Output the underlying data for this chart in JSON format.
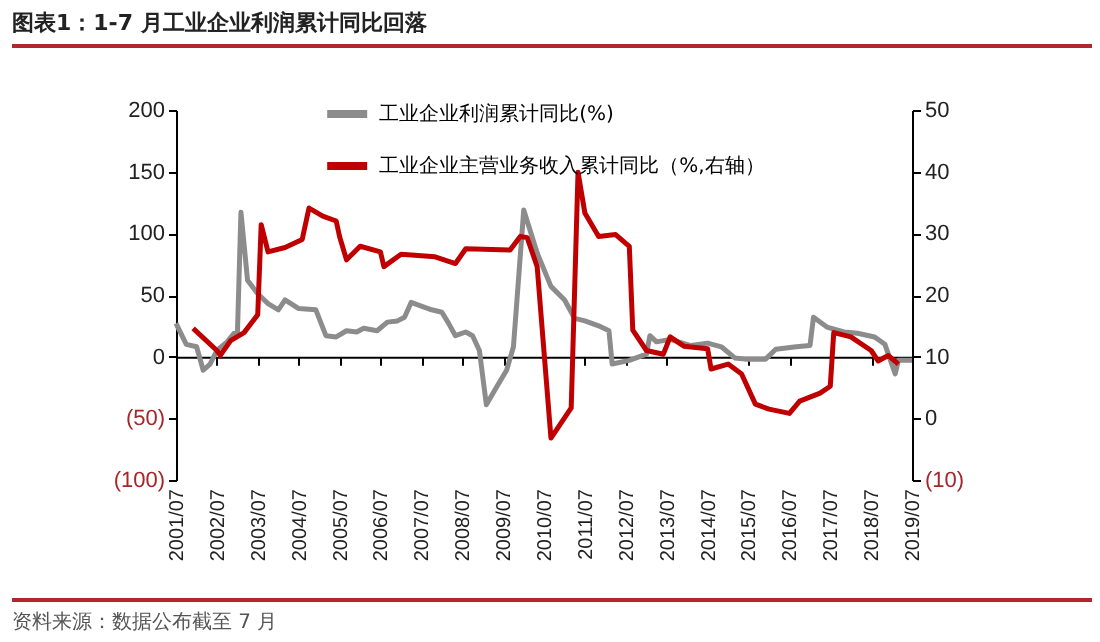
{
  "chart_data": {
    "type": "line",
    "title": "图表1：1-7 月工业企业利润累计同比回落",
    "annotations": [
      "资料来源：数据公布截至 7 月"
    ],
    "xlim": [
      "2001-07",
      "2019-07"
    ],
    "xticks": [
      {
        "value": "2001-07",
        "label": "2001/07"
      },
      {
        "value": "2002-07",
        "label": "2002/07"
      },
      {
        "value": "2003-07",
        "label": "2003/07"
      },
      {
        "value": "2004-07",
        "label": "2004/07"
      },
      {
        "value": "2005-07",
        "label": "2005/07"
      },
      {
        "value": "2006-07",
        "label": "2006/07"
      },
      {
        "value": "2007-07",
        "label": "2007/07"
      },
      {
        "value": "2008-07",
        "label": "2008/07"
      },
      {
        "value": "2009-07",
        "label": "2009/07"
      },
      {
        "value": "2010-07",
        "label": "2010/07"
      },
      {
        "value": "2011-07",
        "label": "2011/07"
      },
      {
        "value": "2012-07",
        "label": "2012/07"
      },
      {
        "value": "2013-07",
        "label": "2013/07"
      },
      {
        "value": "2014-07",
        "label": "2014/07"
      },
      {
        "value": "2015-07",
        "label": "2015/07"
      },
      {
        "value": "2016-07",
        "label": "2016/07"
      },
      {
        "value": "2017-07",
        "label": "2017/07"
      },
      {
        "value": "2018-07",
        "label": "2018/07"
      },
      {
        "value": "2019-07",
        "label": "2019/07"
      }
    ],
    "ylim": [
      -100,
      200
    ],
    "yticks": [
      {
        "value": -100,
        "label": "(100)"
      },
      {
        "value": -50,
        "label": "(50)"
      },
      {
        "value": 0,
        "label": "0"
      },
      {
        "value": 50,
        "label": "50"
      },
      {
        "value": 100,
        "label": "100"
      },
      {
        "value": 150,
        "label": "150"
      },
      {
        "value": 200,
        "label": "200"
      }
    ],
    "y2lim": [
      -10,
      50
    ],
    "y2ticks": [
      {
        "value": -10,
        "label": "(10)"
      },
      {
        "value": 0,
        "label": "0"
      },
      {
        "value": 10,
        "label": "10"
      },
      {
        "value": 20,
        "label": "20"
      },
      {
        "value": 30,
        "label": "30"
      },
      {
        "value": 40,
        "label": "40"
      },
      {
        "value": 50,
        "label": "50"
      }
    ],
    "legend": "top",
    "series": [
      {
        "name": "工业企业利润累计同比(%)",
        "color": "#8c8c8c",
        "x": [
          "2001-07",
          "2001-10",
          "2002-01",
          "2002-03",
          "2002-05",
          "2002-07",
          "2002-10",
          "2002-12",
          "2003-01",
          "2003-02",
          "2003-04",
          "2003-07",
          "2003-10",
          "2004-01",
          "2004-03",
          "2004-07",
          "2004-12",
          "2005-03",
          "2005-06",
          "2005-09",
          "2005-12",
          "2006-02",
          "2006-06",
          "2006-09",
          "2006-12",
          "2007-02",
          "2007-04",
          "2007-07",
          "2007-10",
          "2008-01",
          "2008-03",
          "2008-05",
          "2008-08",
          "2008-10",
          "2008-12",
          "2009-02",
          "2009-05",
          "2009-08",
          "2009-10",
          "2010-01",
          "2010-05",
          "2010-09",
          "2011-01",
          "2011-04",
          "2011-07",
          "2011-11",
          "2012-02",
          "2012-03",
          "2012-08",
          "2013-01",
          "2013-02",
          "2013-04",
          "2013-08",
          "2014-02",
          "2014-07",
          "2014-11",
          "2015-03",
          "2015-06",
          "2015-12",
          "2016-03",
          "2016-09",
          "2017-01",
          "2017-02",
          "2017-06",
          "2017-11",
          "2018-03",
          "2018-08",
          "2018-11",
          "2019-02",
          "2019-03",
          "2019-07"
        ],
        "values": [
          27,
          10,
          8,
          -11,
          -6,
          5,
          12,
          19,
          20,
          117,
          62,
          51,
          43,
          38,
          46,
          39,
          38,
          17,
          16,
          21,
          20,
          23,
          21,
          28,
          29,
          32,
          44,
          41,
          38,
          36,
          27,
          17,
          20,
          17,
          5,
          -39,
          -25,
          -11,
          8,
          119,
          84,
          57,
          46,
          31,
          29,
          25,
          21,
          -6,
          -3,
          2,
          17,
          12,
          14,
          9,
          11,
          8,
          -1,
          -2,
          -2,
          6,
          8,
          9,
          32,
          24,
          20,
          19,
          16,
          10,
          -14,
          -3,
          -3
        ]
      },
      {
        "name": "工业企业主营业务收入累计同比（%,右轴）",
        "color": "#c00000",
        "axis": "y2",
        "x": [
          "2001-12",
          "2002-07",
          "2002-08",
          "2002-11",
          "2003-03",
          "2003-07",
          "2003-08",
          "2003-10",
          "2004-03",
          "2004-08",
          "2004-10",
          "2005-02",
          "2005-06",
          "2005-07",
          "2005-09",
          "2006-01",
          "2006-07",
          "2006-08",
          "2007-01",
          "2007-11",
          "2008-05",
          "2008-08",
          "2009-09",
          "2009-12",
          "2010-02",
          "2010-05",
          "2010-09",
          "2011-03",
          "2011-05",
          "2011-07",
          "2011-11",
          "2012-04",
          "2012-08",
          "2012-09",
          "2013-01",
          "2013-06",
          "2013-08",
          "2013-12",
          "2014-07",
          "2014-08",
          "2015-01",
          "2015-05",
          "2015-09",
          "2016-01",
          "2016-07",
          "2016-10",
          "2017-04",
          "2017-07",
          "2017-08",
          "2018-01",
          "2018-07",
          "2018-09",
          "2018-12",
          "2019-03"
        ],
        "values": [
          14.6,
          11,
          10.2,
          12.6,
          13.9,
          16.8,
          31.4,
          27,
          27.7,
          29,
          34.1,
          32.8,
          32,
          29.5,
          25.7,
          27.9,
          27,
          24.6,
          26.6,
          26.2,
          25.1,
          27.5,
          27.3,
          29.5,
          29.3,
          24.6,
          -3.2,
          1.7,
          39.9,
          33.3,
          29.5,
          29.8,
          27.9,
          14.3,
          11,
          10.4,
          13.2,
          11.7,
          11.3,
          8,
          8.8,
          7.2,
          2.3,
          1.5,
          0.8,
          2.8,
          4.1,
          5.2,
          13.9,
          13.2,
          11,
          9.3,
          10.2,
          8.8
        ]
      }
    ]
  }
}
